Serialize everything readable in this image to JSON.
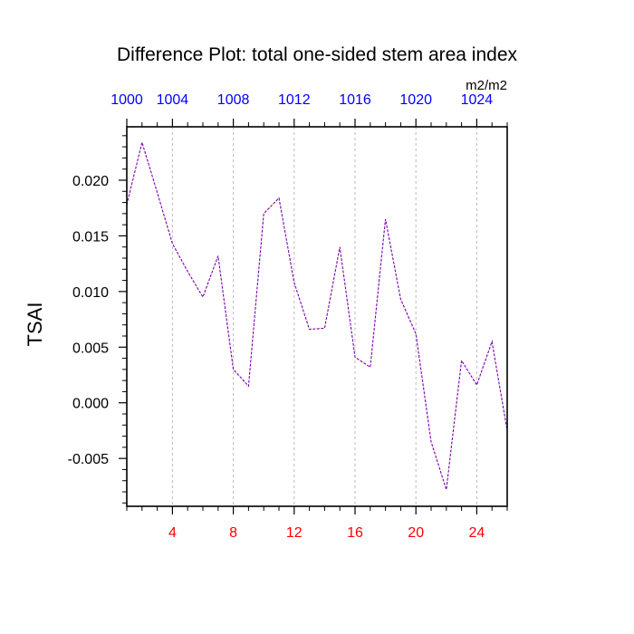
{
  "chart_data": {
    "type": "line",
    "title": "Difference Plot: total one-sided stem area index",
    "ylabel": "TSAI",
    "units": "m2/m2",
    "x": [
      1,
      2,
      3,
      4,
      5,
      6,
      7,
      8,
      9,
      10,
      11,
      12,
      13,
      14,
      15,
      16,
      17,
      18,
      19,
      20,
      21,
      22,
      23,
      24,
      25,
      26
    ],
    "series": [
      {
        "values": [
          0.0178,
          0.0234,
          0.0189,
          0.0143,
          0.0118,
          0.0095,
          0.0132,
          0.003,
          0.0015,
          0.017,
          0.0184,
          0.0108,
          0.0066,
          0.0067,
          0.014,
          0.0041,
          0.0032,
          0.0165,
          0.0093,
          0.0062,
          -0.0035,
          -0.0078,
          0.0038,
          0.0016,
          0.0055,
          -0.0025
        ]
      }
    ],
    "xlim": [
      1,
      26
    ],
    "ylim": [
      -0.0093,
      0.0248
    ],
    "x_ticks": [
      4,
      8,
      12,
      16,
      20,
      24
    ],
    "x_tick_labels": [
      "4",
      "8",
      "12",
      "16",
      "20",
      "24"
    ],
    "x_top_ticks": [
      1,
      4,
      8,
      12,
      16,
      20,
      24
    ],
    "x_top_tick_labels": [
      "1000",
      "1004",
      "1008",
      "1012",
      "1016",
      "1020",
      "1024"
    ],
    "y_ticks": [
      -0.005,
      0.0,
      0.005,
      0.01,
      0.015,
      0.02
    ],
    "y_tick_labels": [
      "-0.005",
      "0.000",
      "0.005",
      "0.010",
      "0.015",
      "0.020"
    ],
    "grid": "vertical dashed",
    "colors": {
      "line": "#7b00b0",
      "bottom_tick_labels": "#ff0000",
      "top_tick_labels": "#0000ff",
      "axis": "#000000",
      "grid": "#bbbbbb"
    }
  }
}
